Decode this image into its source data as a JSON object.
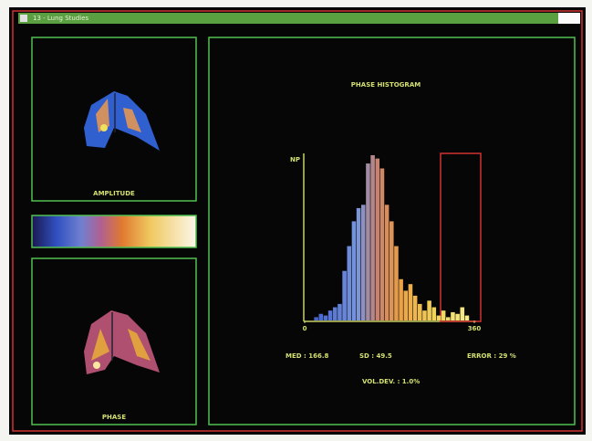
{
  "window": {
    "title": "13 - Lung Studies"
  },
  "panels": {
    "amplitude_label": "AMPLITUDE",
    "phase_label": "PHASE"
  },
  "chart_data": {
    "type": "histogram",
    "title": "PHASE HISTOGRAM",
    "y_label": "NP",
    "bins": [
      0,
      10,
      20,
      30,
      40,
      50,
      60,
      70,
      80,
      90,
      100,
      110,
      120,
      130,
      140,
      150,
      160,
      170,
      180,
      190,
      200,
      210,
      220,
      230,
      240,
      250,
      260,
      270,
      280,
      290,
      300,
      310,
      320,
      330,
      340,
      350,
      360
    ],
    "values": [
      0,
      0,
      2,
      4,
      3,
      6,
      8,
      10,
      30,
      45,
      60,
      68,
      70,
      95,
      100,
      98,
      92,
      70,
      60,
      45,
      25,
      18,
      22,
      15,
      10,
      6,
      12,
      8,
      3,
      6,
      2,
      5,
      4,
      8,
      3,
      0
    ],
    "xlim": [
      0,
      360
    ],
    "xticks": [
      0,
      360
    ],
    "ylim": [
      0,
      100
    ]
  },
  "stats": {
    "med": "MED : 166.8",
    "sd": "SD : 49.5",
    "error": "ERROR : 29 %",
    "vol_dev": "VOL.DEV. : 1.0%"
  }
}
